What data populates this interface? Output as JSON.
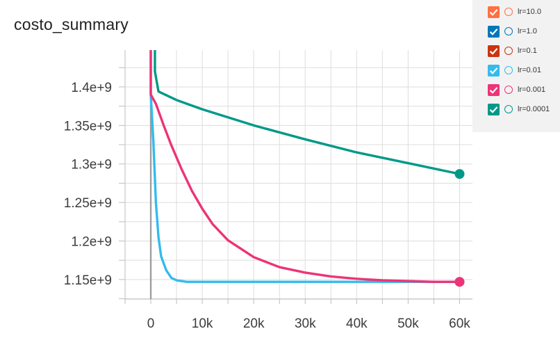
{
  "chart_data": {
    "type": "line",
    "title": "costo_summary",
    "xlim": [
      -5000,
      62500
    ],
    "ylim": [
      1124600000.0,
      1447800000.0
    ],
    "x_ticks": [
      0,
      10000,
      20000,
      30000,
      40000,
      50000,
      60000
    ],
    "x_tick_labels": [
      "0",
      "10k",
      "20k",
      "30k",
      "40k",
      "50k",
      "60k"
    ],
    "y_ticks": [
      1150000000.0,
      1200000000.0,
      1250000000.0,
      1300000000.0,
      1350000000.0,
      1400000000.0
    ],
    "y_tick_labels": [
      "1.15e+9",
      "1.2e+9",
      "1.25e+9",
      "1.3e+9",
      "1.35e+9",
      "1.4e+9"
    ],
    "grid": true,
    "legend_position": "top-right",
    "series": [
      {
        "name": "lr=10.0",
        "color": "#ff7043",
        "enabled": true,
        "points": []
      },
      {
        "name": "lr=1.0",
        "color": "#0077bb",
        "enabled": true,
        "points": []
      },
      {
        "name": "lr=0.1",
        "color": "#cc3311",
        "enabled": true,
        "points": []
      },
      {
        "name": "lr=0.01",
        "color": "#33bbee",
        "enabled": true,
        "points": [
          [
            0,
            1450000000.0
          ],
          [
            0,
            1390000000.0
          ],
          [
            500,
            1330000000.0
          ],
          [
            1000,
            1250000000.0
          ],
          [
            1500,
            1205000000.0
          ],
          [
            2000,
            1180000000.0
          ],
          [
            3000,
            1162000000.0
          ],
          [
            4000,
            1152000000.0
          ],
          [
            5000,
            1149000000.0
          ],
          [
            7000,
            1147000000.0
          ],
          [
            10000,
            1147000000.0
          ],
          [
            30000,
            1147000000.0
          ],
          [
            60000,
            1147000000.0
          ]
        ]
      },
      {
        "name": "lr=0.001",
        "color": "#ee3377",
        "enabled": true,
        "points": [
          [
            0,
            1450000000.0
          ],
          [
            0,
            1390000000.0
          ],
          [
            1000,
            1378000000.0
          ],
          [
            2500,
            1350000000.0
          ],
          [
            4000,
            1324000000.0
          ],
          [
            6000,
            1293000000.0
          ],
          [
            8000,
            1265000000.0
          ],
          [
            10000,
            1242000000.0
          ],
          [
            12000,
            1222000000.0
          ],
          [
            15000,
            1201000000.0
          ],
          [
            20000,
            1179000000.0
          ],
          [
            25000,
            1166000000.0
          ],
          [
            30000,
            1159000000.0
          ],
          [
            35000,
            1154000000.0
          ],
          [
            40000,
            1151000000.0
          ],
          [
            45000,
            1149000000.0
          ],
          [
            50000,
            1148000000.0
          ],
          [
            55000,
            1147000000.0
          ],
          [
            60000,
            1147000000.0
          ]
        ]
      },
      {
        "name": "lr=0.0001",
        "color": "#009988",
        "enabled": true,
        "points": [
          [
            800,
            1450000000.0
          ],
          [
            800,
            1420000000.0
          ],
          [
            1500,
            1394000000.0
          ],
          [
            5000,
            1383000000.0
          ],
          [
            10000,
            1371000000.0
          ],
          [
            20000,
            1350000000.0
          ],
          [
            30000,
            1332000000.0
          ],
          [
            40000,
            1315000000.0
          ],
          [
            50000,
            1301000000.0
          ],
          [
            60000,
            1287000000.0
          ]
        ]
      }
    ]
  }
}
